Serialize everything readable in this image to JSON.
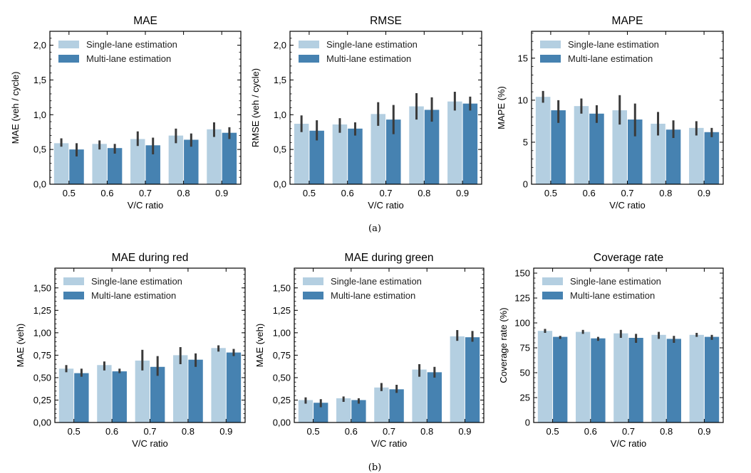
{
  "colors": {
    "single": "#b4cfe1",
    "multi": "#4682b1",
    "error_bar": "#3a3a3a",
    "axis": "#000000"
  },
  "subfigure_labels": [
    "(a)",
    "(b)"
  ],
  "chart_data": [
    {
      "type": "bar",
      "title": "MAE",
      "xlabel": "V/C ratio",
      "ylabel": "MAE (veh / cycle)",
      "categories": [
        "0.5",
        "0.6",
        "0.7",
        "0.8",
        "0.9"
      ],
      "ylim": [
        0,
        2.2
      ],
      "yticks": [
        0,
        0.5,
        1.0,
        1.5,
        2.0
      ],
      "ytick_labels": [
        "0,0",
        "0,5",
        "1,0",
        "1,5",
        "2,0"
      ],
      "minor_tick_step": 0.1,
      "legend": "top-left",
      "series": [
        {
          "name": "Single-lane estimation",
          "values": [
            0.59,
            0.58,
            0.65,
            0.7,
            0.79
          ],
          "error": [
            [
              0.54,
              0.66
            ],
            [
              0.5,
              0.63
            ],
            [
              0.55,
              0.76
            ],
            [
              0.59,
              0.8
            ],
            [
              0.68,
              0.89
            ]
          ]
        },
        {
          "name": "Multi-lane estimation",
          "values": [
            0.5,
            0.52,
            0.56,
            0.64,
            0.74
          ],
          "error": [
            [
              0.4,
              0.59
            ],
            [
              0.44,
              0.58
            ],
            [
              0.43,
              0.67
            ],
            [
              0.54,
              0.73
            ],
            [
              0.65,
              0.82
            ]
          ]
        }
      ]
    },
    {
      "type": "bar",
      "title": "RMSE",
      "xlabel": "V/C ratio",
      "ylabel": "RMSE (veh / cycle)",
      "categories": [
        "0.5",
        "0.6",
        "0.7",
        "0.8",
        "0.9"
      ],
      "ylim": [
        0,
        2.2
      ],
      "yticks": [
        0,
        0.5,
        1.0,
        1.5,
        2.0
      ],
      "ytick_labels": [
        "0,0",
        "0,5",
        "1,0",
        "1,5",
        "2,0"
      ],
      "minor_tick_step": 0.1,
      "legend": "top-left",
      "series": [
        {
          "name": "Single-lane estimation",
          "values": [
            0.87,
            0.86,
            1.01,
            1.12,
            1.19
          ],
          "error": [
            [
              0.75,
              0.99
            ],
            [
              0.74,
              0.95
            ],
            [
              0.84,
              1.18
            ],
            [
              0.93,
              1.31
            ],
            [
              1.06,
              1.33
            ]
          ]
        },
        {
          "name": "Multi-lane estimation",
          "values": [
            0.77,
            0.8,
            0.93,
            1.07,
            1.16
          ],
          "error": [
            [
              0.63,
              0.92
            ],
            [
              0.7,
              0.89
            ],
            [
              0.72,
              1.14
            ],
            [
              0.9,
              1.25
            ],
            [
              1.06,
              1.26
            ]
          ]
        }
      ]
    },
    {
      "type": "bar",
      "title": "MAPE",
      "xlabel": "V/C ratio",
      "ylabel": "MAPE (%)",
      "categories": [
        "0.5",
        "0.6",
        "0.7",
        "0.8",
        "0.9"
      ],
      "ylim": [
        0,
        18.2
      ],
      "yticks": [
        0,
        5,
        10,
        15
      ],
      "ytick_labels": [
        "0",
        "5",
        "10",
        "15"
      ],
      "minor_tick_step": 1,
      "legend": "top-left",
      "series": [
        {
          "name": "Single-lane estimation",
          "values": [
            10.4,
            9.3,
            8.8,
            7.2,
            6.7
          ],
          "error": [
            [
              9.7,
              11.1
            ],
            [
              8.4,
              10.2
            ],
            [
              7.1,
              10.6
            ],
            [
              5.8,
              8.6
            ],
            [
              5.8,
              7.5
            ]
          ]
        },
        {
          "name": "Multi-lane estimation",
          "values": [
            8.8,
            8.4,
            7.7,
            6.5,
            6.2
          ],
          "error": [
            [
              7.3,
              10.0
            ],
            [
              7.3,
              9.4
            ],
            [
              5.7,
              9.6
            ],
            [
              5.5,
              7.6
            ],
            [
              5.6,
              6.7
            ]
          ]
        }
      ]
    },
    {
      "type": "bar",
      "title": "MAE during red",
      "xlabel": "V/C ratio",
      "ylabel": "MAE (veh)",
      "categories": [
        "0.5",
        "0.6",
        "0.7",
        "0.8",
        "0.9"
      ],
      "ylim": [
        0,
        1.72
      ],
      "yticks": [
        0,
        0.25,
        0.5,
        0.75,
        1.0,
        1.25,
        1.5
      ],
      "ytick_labels": [
        "0,00",
        "0,25",
        "0,50",
        "0,75",
        "1,00",
        "1,25",
        "1,50"
      ],
      "minor_tick_step": 0.05,
      "legend": "top-left",
      "series": [
        {
          "name": "Single-lane estimation",
          "values": [
            0.6,
            0.64,
            0.69,
            0.75,
            0.83
          ],
          "error": [
            [
              0.56,
              0.64
            ],
            [
              0.58,
              0.68
            ],
            [
              0.58,
              0.81
            ],
            [
              0.65,
              0.84
            ],
            [
              0.79,
              0.86
            ]
          ]
        },
        {
          "name": "Multi-lane estimation",
          "values": [
            0.55,
            0.57,
            0.62,
            0.7,
            0.78
          ],
          "error": [
            [
              0.51,
              0.6
            ],
            [
              0.55,
              0.6
            ],
            [
              0.52,
              0.74
            ],
            [
              0.62,
              0.77
            ],
            [
              0.74,
              0.82
            ]
          ]
        }
      ]
    },
    {
      "type": "bar",
      "title": "MAE during green",
      "xlabel": "V/C ratio",
      "ylabel": "MAE (veh)",
      "categories": [
        "0.5",
        "0.6",
        "0.7",
        "0.8",
        "0.9"
      ],
      "ylim": [
        0,
        1.72
      ],
      "yticks": [
        0,
        0.25,
        0.5,
        0.75,
        1.0,
        1.25,
        1.5
      ],
      "ytick_labels": [
        "0,00",
        "0,25",
        "0,50",
        "0,75",
        "1,00",
        "1,25",
        "1,50"
      ],
      "minor_tick_step": 0.05,
      "legend": "top-left",
      "series": [
        {
          "name": "Single-lane estimation",
          "values": [
            0.25,
            0.27,
            0.39,
            0.59,
            0.96
          ],
          "error": [
            [
              0.21,
              0.28
            ],
            [
              0.23,
              0.29
            ],
            [
              0.35,
              0.44
            ],
            [
              0.51,
              0.65
            ],
            [
              0.91,
              1.03
            ]
          ]
        },
        {
          "name": "Multi-lane estimation",
          "values": [
            0.22,
            0.25,
            0.37,
            0.56,
            0.95
          ],
          "error": [
            [
              0.17,
              0.26
            ],
            [
              0.21,
              0.27
            ],
            [
              0.33,
              0.42
            ],
            [
              0.5,
              0.62
            ],
            [
              0.9,
              1.02
            ]
          ]
        }
      ]
    },
    {
      "type": "bar",
      "title": "Coverage rate",
      "xlabel": "V/C ratio",
      "ylabel": "Coverage rate (%)",
      "categories": [
        "0.5",
        "0.6",
        "0.7",
        "0.8",
        "0.9"
      ],
      "ylim": [
        0,
        155
      ],
      "yticks": [
        0,
        25,
        50,
        75,
        100,
        125,
        150
      ],
      "ytick_labels": [
        "0",
        "25",
        "50",
        "75",
        "100",
        "125",
        "150"
      ],
      "minor_tick_step": 5,
      "legend": "top-left",
      "series": [
        {
          "name": "Single-lane estimation",
          "values": [
            92,
            91,
            89.5,
            88,
            88
          ],
          "error": [
            [
              90,
              94
            ],
            [
              89,
              93
            ],
            [
              85,
              93
            ],
            [
              84,
              91
            ],
            [
              86,
              90
            ]
          ]
        },
        {
          "name": "Multi-lane estimation",
          "values": [
            86,
            84.5,
            85,
            84,
            86
          ],
          "error": [
            [
              84,
              87
            ],
            [
              82,
              86
            ],
            [
              80,
              89
            ],
            [
              80,
              87
            ],
            [
              83,
              88
            ]
          ]
        }
      ]
    }
  ]
}
